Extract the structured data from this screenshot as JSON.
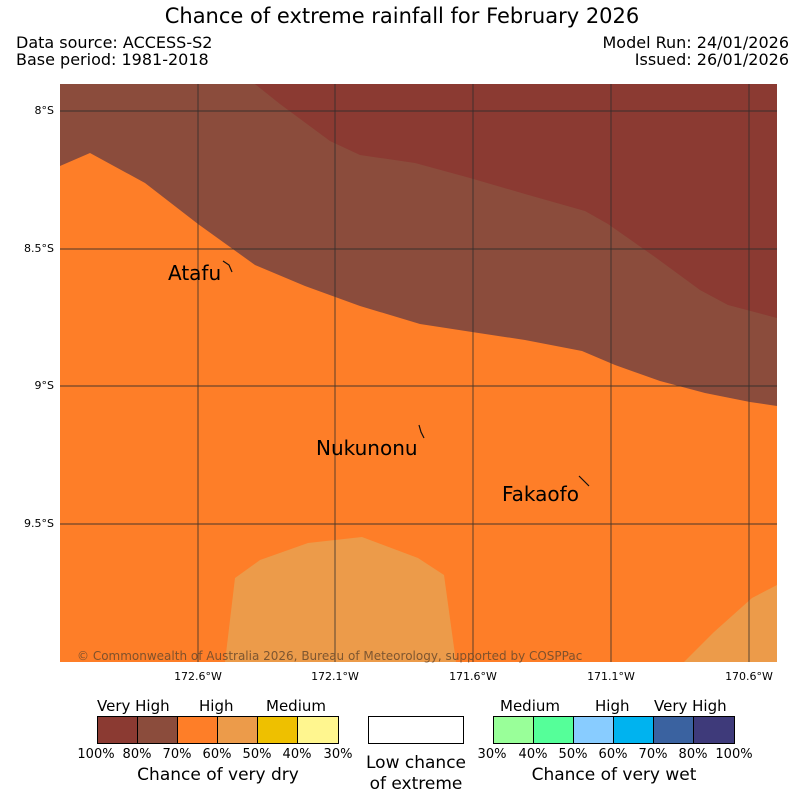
{
  "header": {
    "title": "Chance of extreme rainfall for February 2026",
    "data_source": "Data source: ACCESS-S2",
    "base_period": "Base period: 1981-2018",
    "model_run": "Model Run: 24/01/2026",
    "issued": "Issued: 26/01/2026"
  },
  "map": {
    "latitude_labels": [
      "8°S",
      "8.5°S",
      "9°S",
      "9.5°S"
    ],
    "longitude_labels": [
      "172.6°W",
      "172.1°W",
      "171.6°W",
      "171.1°W",
      "170.6°W"
    ],
    "places": [
      "Atafu",
      "Nukunonu",
      "Fakaofo"
    ],
    "copyright": "© Commonwealth of Australia 2026, Bureau of Meteorology, supported by COSPPac",
    "colors": {
      "very_high_dry": "#8b3a32",
      "high_dry_80": "#8b4c3c",
      "high_dry": "#fe7e28",
      "medium_dry": "#ec9b4a",
      "grid": "#2b2b2b"
    }
  },
  "legend": {
    "dry": {
      "labels": {
        "very_high": "Very High",
        "high": "High",
        "medium": "Medium"
      },
      "ticks": [
        "100%",
        "80%",
        "70%",
        "60%",
        "50%",
        "40%",
        "30%"
      ],
      "caption": "Chance of very dry",
      "colors": [
        "#8b3a32",
        "#8b4c3c",
        "#fe7e28",
        "#ec9b4a",
        "#eec000",
        "#fff68f"
      ]
    },
    "low": {
      "line1": "Low chance",
      "line2": "of extreme"
    },
    "wet": {
      "labels": {
        "medium": "Medium",
        "high": "High",
        "very_high": "Very High"
      },
      "ticks": [
        "30%",
        "40%",
        "50%",
        "60%",
        "70%",
        "80%",
        "100%"
      ],
      "caption": "Chance of very wet",
      "colors": [
        "#99ff99",
        "#55ff99",
        "#88ccff",
        "#00b3ef",
        "#3a62a0",
        "#3e3a7a"
      ]
    }
  }
}
